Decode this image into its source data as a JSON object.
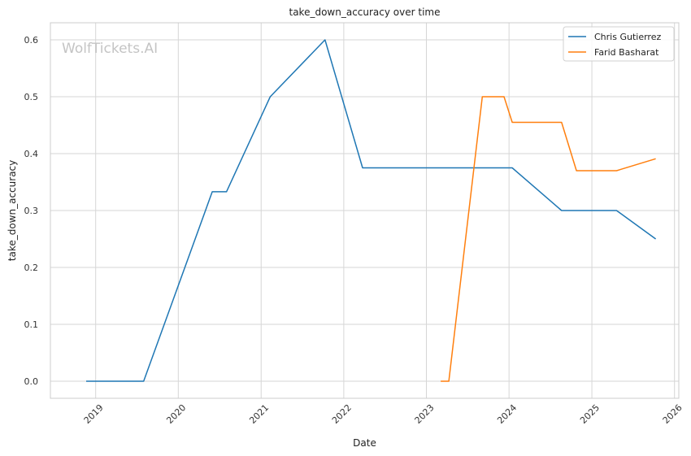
{
  "chart_data": {
    "type": "line",
    "title": "take_down_accuracy over time",
    "xlabel": "Date",
    "ylabel": "take_down_accuracy",
    "watermark": "WolfTickets.AI",
    "xlim": [
      "2018-06-15",
      "2026-01-20"
    ],
    "ylim": [
      -0.03,
      0.63
    ],
    "x_ticks": [
      "2019",
      "2020",
      "2021",
      "2022",
      "2023",
      "2024",
      "2025",
      "2026"
    ],
    "y_ticks": [
      "0.0",
      "0.1",
      "0.2",
      "0.3",
      "0.4",
      "0.5",
      "0.6"
    ],
    "grid": true,
    "legend_position": "top-right",
    "series": [
      {
        "name": "Chris Gutierrez",
        "color": "#1f77b4",
        "points": [
          [
            "2018-11-20",
            0.0
          ],
          [
            "2019-08-01",
            0.0
          ],
          [
            "2020-05-30",
            0.333
          ],
          [
            "2020-08-01",
            0.333
          ],
          [
            "2021-02-10",
            0.5
          ],
          [
            "2021-10-10",
            0.6
          ],
          [
            "2022-03-25",
            0.375
          ],
          [
            "2024-01-15",
            0.375
          ],
          [
            "2024-08-20",
            0.3
          ],
          [
            "2025-04-20",
            0.3
          ],
          [
            "2025-10-10",
            0.25
          ]
        ]
      },
      {
        "name": "Farid Basharat",
        "color": "#ff7f0e",
        "points": [
          [
            "2023-03-05",
            0.0
          ],
          [
            "2023-04-10",
            0.0
          ],
          [
            "2023-09-05",
            0.5
          ],
          [
            "2023-12-10",
            0.5
          ],
          [
            "2024-01-15",
            0.455
          ],
          [
            "2024-08-20",
            0.455
          ],
          [
            "2024-10-25",
            0.37
          ],
          [
            "2025-04-20",
            0.37
          ],
          [
            "2025-10-10",
            0.391
          ]
        ]
      }
    ]
  }
}
